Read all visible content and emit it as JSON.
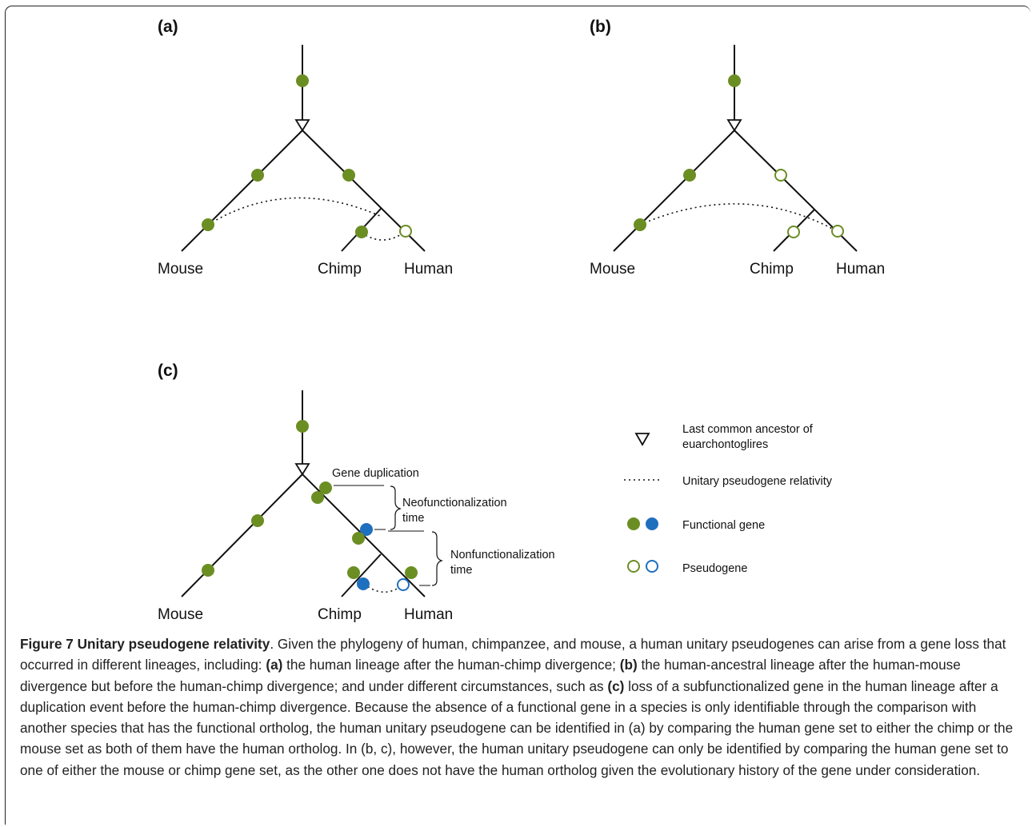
{
  "panels": {
    "a": {
      "label": "(a)"
    },
    "b": {
      "label": "(b)"
    },
    "c": {
      "label": "(c)"
    }
  },
  "species": {
    "mouse": "Mouse",
    "chimp": "Chimp",
    "human": "Human"
  },
  "annotations": {
    "gene_duplication": "Gene duplication",
    "neofunctionalization_1": "Neofunctionalization",
    "neofunctionalization_2": "time",
    "nonfunctionalization_1": "Nonfunctionalization",
    "nonfunctionalization_2": "time"
  },
  "legend": {
    "ancestor_1": "Last common ancestor of",
    "ancestor_2": "euarchontoglires",
    "relativity": "Unitary pseudogene relativity",
    "functional": "Functional gene",
    "pseudogene": "Pseudogene"
  },
  "colors": {
    "green": "#6b8e23",
    "blue": "#1f6fbf",
    "line": "#111111"
  },
  "caption": {
    "title": "Figure 7 Unitary pseudogene relativity",
    "t1": ". Given the phylogeny of human, chimpanzee, and mouse, a human unitary pseudogenes can arise from a gene loss that occurred in different lineages, including: ",
    "a": "(a)",
    "t2": " the human lineage after the human-chimp divergence; ",
    "b": "(b)",
    "t3": " the human-ancestral lineage after the human-mouse divergence but before the human-chimp divergence; and under different circumstances, such as ",
    "c": "(c)",
    "t4": " loss of a subfunctionalized gene in the human lineage after a duplication event before the human-chimp divergence. Because the absence of a functional gene in a species is only identifiable through the comparison with another species that has the functional ortholog, the human unitary pseudogene can be identified in (a) by comparing the human gene set to either the chimp or the mouse set as both of them have the human ortholog. In (b, c), however, the human unitary pseudogene can only be identified by comparing the human gene set to one of either the mouse or chimp gene set, as the other one does not have the human ortholog given the evolutionary history of the gene under consideration."
  }
}
